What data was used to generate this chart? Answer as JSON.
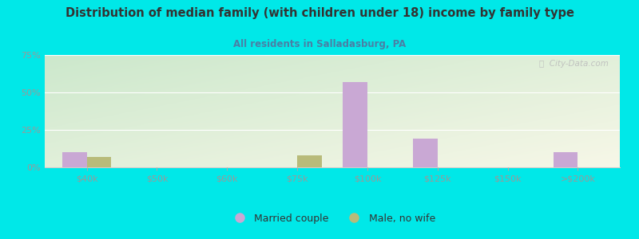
{
  "title": "Distribution of median family (with children under 18) income by family type",
  "subtitle": "All residents in Salladasburg, PA",
  "categories": [
    "$40k",
    "$50k",
    "$60k",
    "$75k",
    "$100k",
    "$125k",
    "$150k",
    ">$200k"
  ],
  "married_couple": [
    10,
    0,
    0,
    0,
    57,
    19,
    0,
    10
  ],
  "male_no_wife": [
    7,
    0,
    0,
    8,
    0,
    0,
    0,
    0
  ],
  "married_color": "#c9a8d4",
  "male_color": "#b8bb7a",
  "bg_outer": "#00e8e8",
  "title_color": "#333333",
  "subtitle_color": "#4a7fa5",
  "tick_label_color": "#999999",
  "ylim": [
    0,
    75
  ],
  "yticks": [
    0,
    25,
    50,
    75
  ],
  "ytick_labels": [
    "0%",
    "25%",
    "50%",
    "75%"
  ],
  "bar_width": 0.35,
  "watermark": "ⓘ  City-Data.com"
}
